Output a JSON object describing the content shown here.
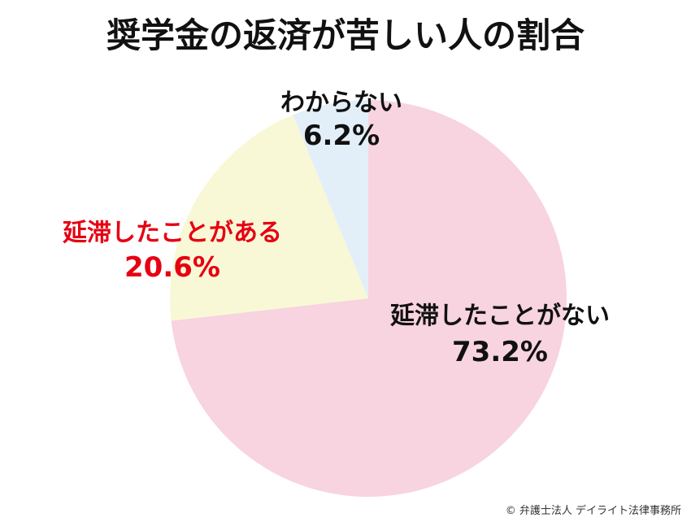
{
  "chart_data": {
    "type": "pie",
    "title": "奨学金の返済が苦しい人の割合",
    "start_angle_deg": 0,
    "direction": "clockwise",
    "slices": [
      {
        "label": "延滞したことがない",
        "value": 73.2,
        "display": "73.2%",
        "color": "#f8d3e0",
        "text_color": "#111111"
      },
      {
        "label": "延滞したことがある",
        "value": 20.6,
        "display": "20.6%",
        "color": "#f8f8d6",
        "text_color": "#e60012"
      },
      {
        "label": "わからない",
        "value": 6.2,
        "display": "6.2%",
        "color": "#e3eff8",
        "text_color": "#111111"
      }
    ]
  },
  "copyright": "© 弁護士法人 デイライト法律事務所"
}
